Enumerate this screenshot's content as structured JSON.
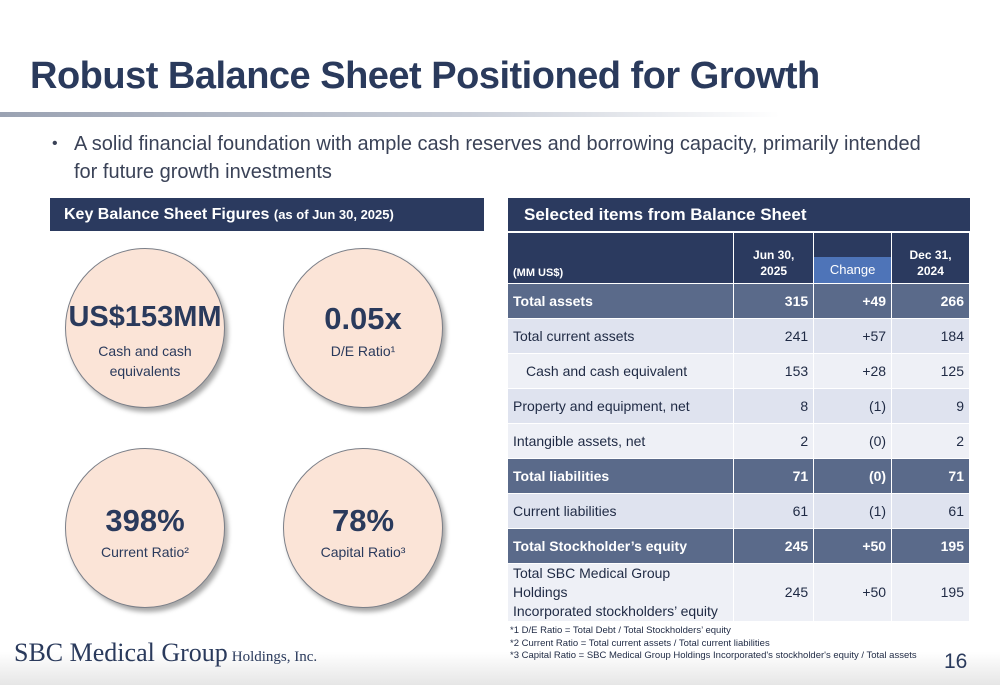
{
  "title": "Robust Balance Sheet Positioned for Growth",
  "bullet": "A solid financial foundation with ample cash reserves and borrowing capacity, primarily intended for future growth investments",
  "bullet_symbol": "•",
  "left_header": {
    "main": "Key Balance Sheet Figures",
    "sub": "(as of Jun 30, 2025)"
  },
  "right_header": "Selected items from Balance Sheet",
  "kpis": [
    {
      "value": "US$153MM",
      "label": "Cash and cash equivalents"
    },
    {
      "value": "0.05x",
      "label": "D/E Ratio¹"
    },
    {
      "value": "398%",
      "label": "Current Ratio²"
    },
    {
      "value": "78%",
      "label": "Capital Ratio³"
    }
  ],
  "table": {
    "unit": "(MM US$)",
    "col_jun_line1": "Jun 30,",
    "col_jun_line2": "2025",
    "col_change": "Change",
    "col_dec_line1": "Dec 31,",
    "col_dec_line2": "2024",
    "rows": [
      {
        "label": "Total assets",
        "jun": "315",
        "change": "+49",
        "dec": "266"
      },
      {
        "label": "Total current assets",
        "jun": "241",
        "change": "+57",
        "dec": "184"
      },
      {
        "label": "Cash and cash equivalent",
        "jun": "153",
        "change": "+28",
        "dec": "125"
      },
      {
        "label": "Property and equipment, net",
        "jun": "8",
        "change": "(1)",
        "dec": "9"
      },
      {
        "label": "Intangible assets, net",
        "jun": "2",
        "change": "(0)",
        "dec": "2"
      },
      {
        "label": "Total liabilities",
        "jun": "71",
        "change": "(0)",
        "dec": "71"
      },
      {
        "label": "Current liabilities",
        "jun": "61",
        "change": "(1)",
        "dec": "61"
      },
      {
        "label": "Total Stockholder’s equity",
        "jun": "245",
        "change": "+50",
        "dec": "195"
      },
      {
        "label_line1": "Total SBC Medical Group Holdings",
        "label_line2": "Incorporated stockholders’ equity",
        "jun": "245",
        "change": "+50",
        "dec": "195"
      }
    ]
  },
  "footnotes": [
    "*1 D/E Ratio = Total Debt / Total Stockholders’ equity",
    "*2 Current Ratio = Total current assets / Total current liabilities",
    "*3 Capital Ratio = SBC Medical Group Holdings Incorporated's stockholder's equity /  Total assets"
  ],
  "logo": {
    "main": "SBC Medical Group",
    "suffix": "Holdings, Inc."
  },
  "page_number": "16",
  "colors": {
    "navy": "#2b3a5f",
    "highlight_row": "#5a6a8a",
    "change_box": "#4e74b8",
    "circle_fill": "#fbe4d7"
  }
}
